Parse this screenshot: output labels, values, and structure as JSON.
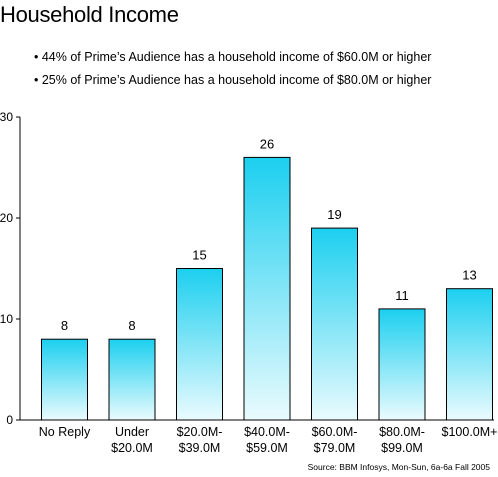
{
  "title": "Household Income",
  "bullets": [
    "• 44% of Prime’s Audience has a household income of $60.0M or higher",
    "• 25% of Prime’s Audience has a household income of $80.0M or higher"
  ],
  "source": "Source: BBM Infosys, Mon-Sun, 6a-6a Fall 2005",
  "chart_data": {
    "type": "bar",
    "categories": [
      [
        "No Reply"
      ],
      [
        "Under",
        "$20.0M"
      ],
      [
        "$20.0M-",
        "$39.0M"
      ],
      [
        "$40.0M-",
        "$59.0M"
      ],
      [
        "$60.0M-",
        "$79.0M"
      ],
      [
        "$80.0M-",
        "$99.0M"
      ],
      [
        "$100.0M+"
      ]
    ],
    "values": [
      8,
      8,
      15,
      26,
      19,
      11,
      13
    ],
    "data_labels": [
      "8",
      "8",
      "15",
      "26",
      "19",
      "11",
      "13"
    ],
    "yticks": [
      0,
      10,
      20,
      30
    ],
    "ylim": [
      0,
      30
    ],
    "grid": false,
    "legend": "none",
    "bar_color_top": "#1ccfef",
    "bar_color_bottom": "#eafbfe",
    "bar_stroke": "#000000"
  }
}
